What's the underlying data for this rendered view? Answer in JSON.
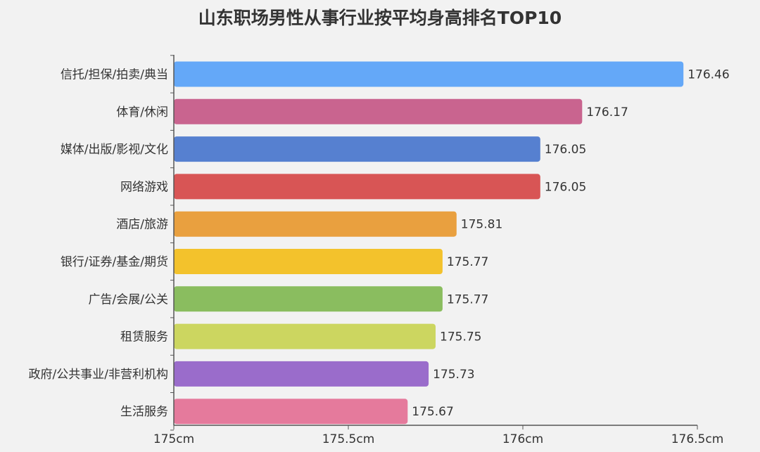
{
  "chart_data": {
    "type": "bar",
    "orientation": "horizontal",
    "title": "山东职场男性从事行业按平均身高排名TOP10",
    "categories": [
      "信托/担保/拍卖/典当",
      "体育/休闲",
      "媒体/出版/影视/文化",
      "网络游戏",
      "酒店/旅游",
      "银行/证券/基金/期货",
      "广告/会展/公关",
      "租赁服务",
      "政府/公共事业/非营利机构",
      "生活服务"
    ],
    "values": [
      176.46,
      176.17,
      176.05,
      176.05,
      175.81,
      175.77,
      175.77,
      175.75,
      175.73,
      175.67
    ],
    "value_labels": [
      "176.46",
      "176.17",
      "176.05",
      "176.05",
      "175.81",
      "175.77",
      "175.77",
      "175.75",
      "175.73",
      "175.67"
    ],
    "colors": [
      "#64a8f8",
      "#c9648f",
      "#5680d0",
      "#d85555",
      "#e9a03f",
      "#f3c22c",
      "#8abd5f",
      "#ccd660",
      "#9a6ccb",
      "#e57a9c"
    ],
    "xlim": [
      175,
      176.5
    ],
    "xticks": [
      175,
      175.5,
      176,
      176.5
    ],
    "xtick_labels": [
      "175cm",
      "175.5cm",
      "176cm",
      "176.5cm"
    ],
    "xlabel": "",
    "ylabel": "",
    "grid": false,
    "legend": "none"
  }
}
